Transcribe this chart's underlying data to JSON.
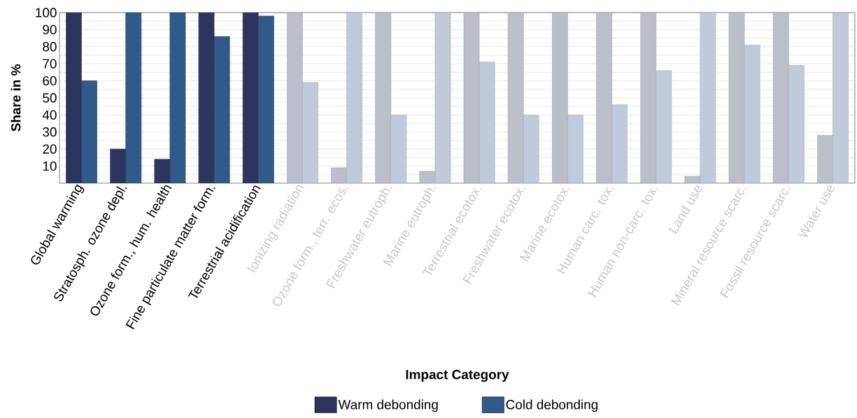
{
  "chart_data": {
    "type": "bar",
    "xlabel": "Impact Category",
    "ylabel": "Share in %",
    "categories": [
      "Global warming",
      "Stratosph. ozone depl.",
      "Ozone form., hum. health",
      "Fine particulate matter form.",
      "Terrestrial acidification",
      "Ionizing radiation",
      "Ozone form., terr. ecos.",
      "Freshwater eutroph.",
      "Marine eutroph.",
      "Terrestrial ecotox.",
      "Freshwater ecotox.",
      "Marine ecotox.",
      "Human carc. tox.",
      "Human non-carc. tox.",
      "Land use",
      "Mineral resource scarc.",
      "Fossil resource scarc.",
      "Water use"
    ],
    "series": [
      {
        "name": "Warm debonding",
        "color": "#2b3560",
        "colors": [
          "#2b3560",
          "#2b3560",
          "#2b3560",
          "#2b3560",
          "#2b3560",
          "#bcbfca",
          "#bcbfca",
          "#bcbfca",
          "#bcbfca",
          "#bcbfca",
          "#bcbfca",
          "#bcbfca",
          "#bcbfca",
          "#bcbfca",
          "#bcbfca",
          "#bcbfca",
          "#bcbfca",
          "#bcbfca"
        ],
        "values": [
          100,
          20,
          14,
          100,
          100,
          100,
          9,
          100,
          7,
          100,
          100,
          100,
          100,
          100,
          4,
          100,
          100,
          28
        ]
      },
      {
        "name": "Cold debonding",
        "color": "#2f5a8a",
        "colors": [
          "#2f5a8a",
          "#2f5a8a",
          "#2f5a8a",
          "#2f5a8a",
          "#2f5a8a",
          "#c0cadb",
          "#c0cadb",
          "#c0cadb",
          "#c0cadb",
          "#c0cadb",
          "#c0cadb",
          "#c0cadb",
          "#c0cadb",
          "#c0cadb",
          "#c0cadb",
          "#c0cadb",
          "#c0cadb",
          "#c0cadb"
        ],
        "values": [
          60,
          100,
          100,
          86,
          98,
          59,
          100,
          40,
          100,
          71,
          40,
          40,
          46,
          66,
          100,
          81,
          69,
          100
        ]
      }
    ],
    "ylim": [
      0,
      100
    ],
    "yticks": [
      {
        "value": 5,
        "label": null
      },
      10,
      {
        "value": 15,
        "label": null
      },
      20,
      {
        "value": 25,
        "label": null
      },
      30,
      {
        "value": 35,
        "label": null
      },
      40,
      {
        "value": 45,
        "label": null
      },
      50,
      {
        "value": 55,
        "label": null
      },
      60,
      {
        "value": 65,
        "label": null
      },
      70,
      {
        "value": 75,
        "label": null
      },
      80,
      {
        "value": 85,
        "label": null
      },
      90,
      {
        "value": 95,
        "label": null
      },
      100
    ],
    "grid": "y",
    "legend": "bottom"
  }
}
